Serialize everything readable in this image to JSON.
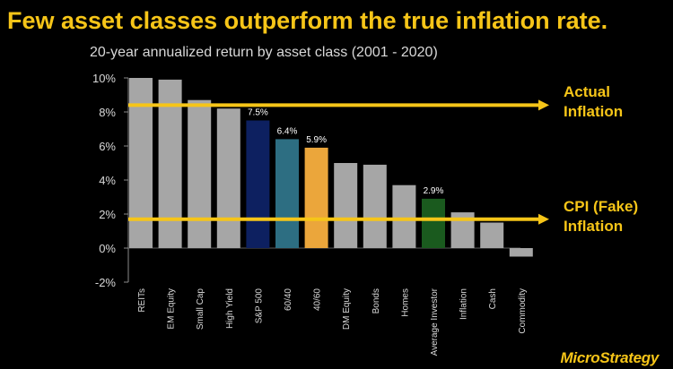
{
  "title": "Few asset classes outperform the true inflation rate.",
  "subtitle": "20-year annualized return by asset class (2001 - 2020)",
  "annotations": {
    "actual_line1": "Actual",
    "actual_line2": "Inflation",
    "cpi_line1": "CPI (Fake)",
    "cpi_line2": "Inflation"
  },
  "logo_text": "MicroStrategy",
  "chart_data": {
    "type": "bar",
    "title": "20-year annualized return by asset class (2001 - 2020)",
    "categories": [
      "REITs",
      "EM Equity",
      "Small Cap",
      "High Yield",
      "S&P 500",
      "60/40",
      "40/60",
      "DM Equity",
      "Bonds",
      "Homes",
      "Average Investor",
      "Inflation",
      "Cash",
      "Commodity"
    ],
    "values": [
      10.0,
      9.9,
      8.7,
      8.2,
      7.5,
      6.4,
      5.9,
      5.0,
      4.9,
      3.7,
      2.9,
      2.1,
      1.5,
      -0.5
    ],
    "data_labels": [
      "",
      "",
      "",
      "",
      "7.5%",
      "6.4%",
      "5.9%",
      "",
      "",
      "",
      "2.9%",
      "",
      "",
      ""
    ],
    "colors": [
      "#a6a6a6",
      "#a6a6a6",
      "#a6a6a6",
      "#a6a6a6",
      "#0d2060",
      "#2d6e82",
      "#eba63b",
      "#a6a6a6",
      "#a6a6a6",
      "#a6a6a6",
      "#1a5a1e",
      "#a6a6a6",
      "#a6a6a6",
      "#a6a6a6"
    ],
    "ylim": [
      -2,
      10
    ],
    "yticks": [
      -2,
      0,
      2,
      4,
      6,
      8,
      10
    ],
    "ytick_labels": [
      "-2%",
      "0%",
      "2%",
      "4%",
      "6%",
      "8%",
      "10%"
    ],
    "xlabel": "",
    "ylabel": "",
    "grid": false,
    "reference_lines": [
      {
        "name": "Actual Inflation",
        "value": 8.4,
        "color": "#f6c518"
      },
      {
        "name": "CPI (Fake) Inflation",
        "value": 1.7,
        "color": "#f6c518"
      }
    ]
  }
}
